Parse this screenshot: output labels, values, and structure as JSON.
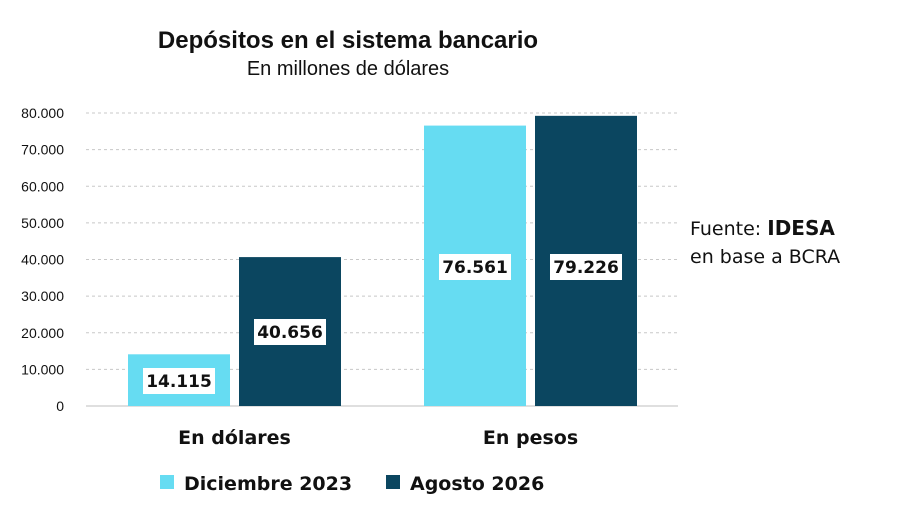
{
  "chart_data": {
    "type": "bar",
    "title": "Depósitos en el sistema bancario",
    "subtitle": "En millones de dólares",
    "categories": [
      "En dólares",
      "En pesos"
    ],
    "series": [
      {
        "name": "Diciembre 2023",
        "color": "#66dcf2",
        "values": [
          14115,
          76561
        ],
        "labels": [
          "14.115",
          "76.561"
        ]
      },
      {
        "name": "Agosto 2026",
        "color": "#0b4660",
        "values": [
          40656,
          79226
        ],
        "labels": [
          "40.656",
          "79.226"
        ]
      }
    ],
    "ylim": [
      0,
      80000
    ],
    "yticks": [
      0,
      10000,
      20000,
      30000,
      40000,
      50000,
      60000,
      70000,
      80000
    ],
    "ytick_labels": [
      "0",
      "10.000",
      "20.000",
      "30.000",
      "40.000",
      "50.000",
      "60.000",
      "70.000",
      "80.000"
    ],
    "grid": true,
    "legend_position": "bottom",
    "source": {
      "prefix": "Fuente: ",
      "brand": "IDESA",
      "line2": "en base a BCRA"
    }
  }
}
